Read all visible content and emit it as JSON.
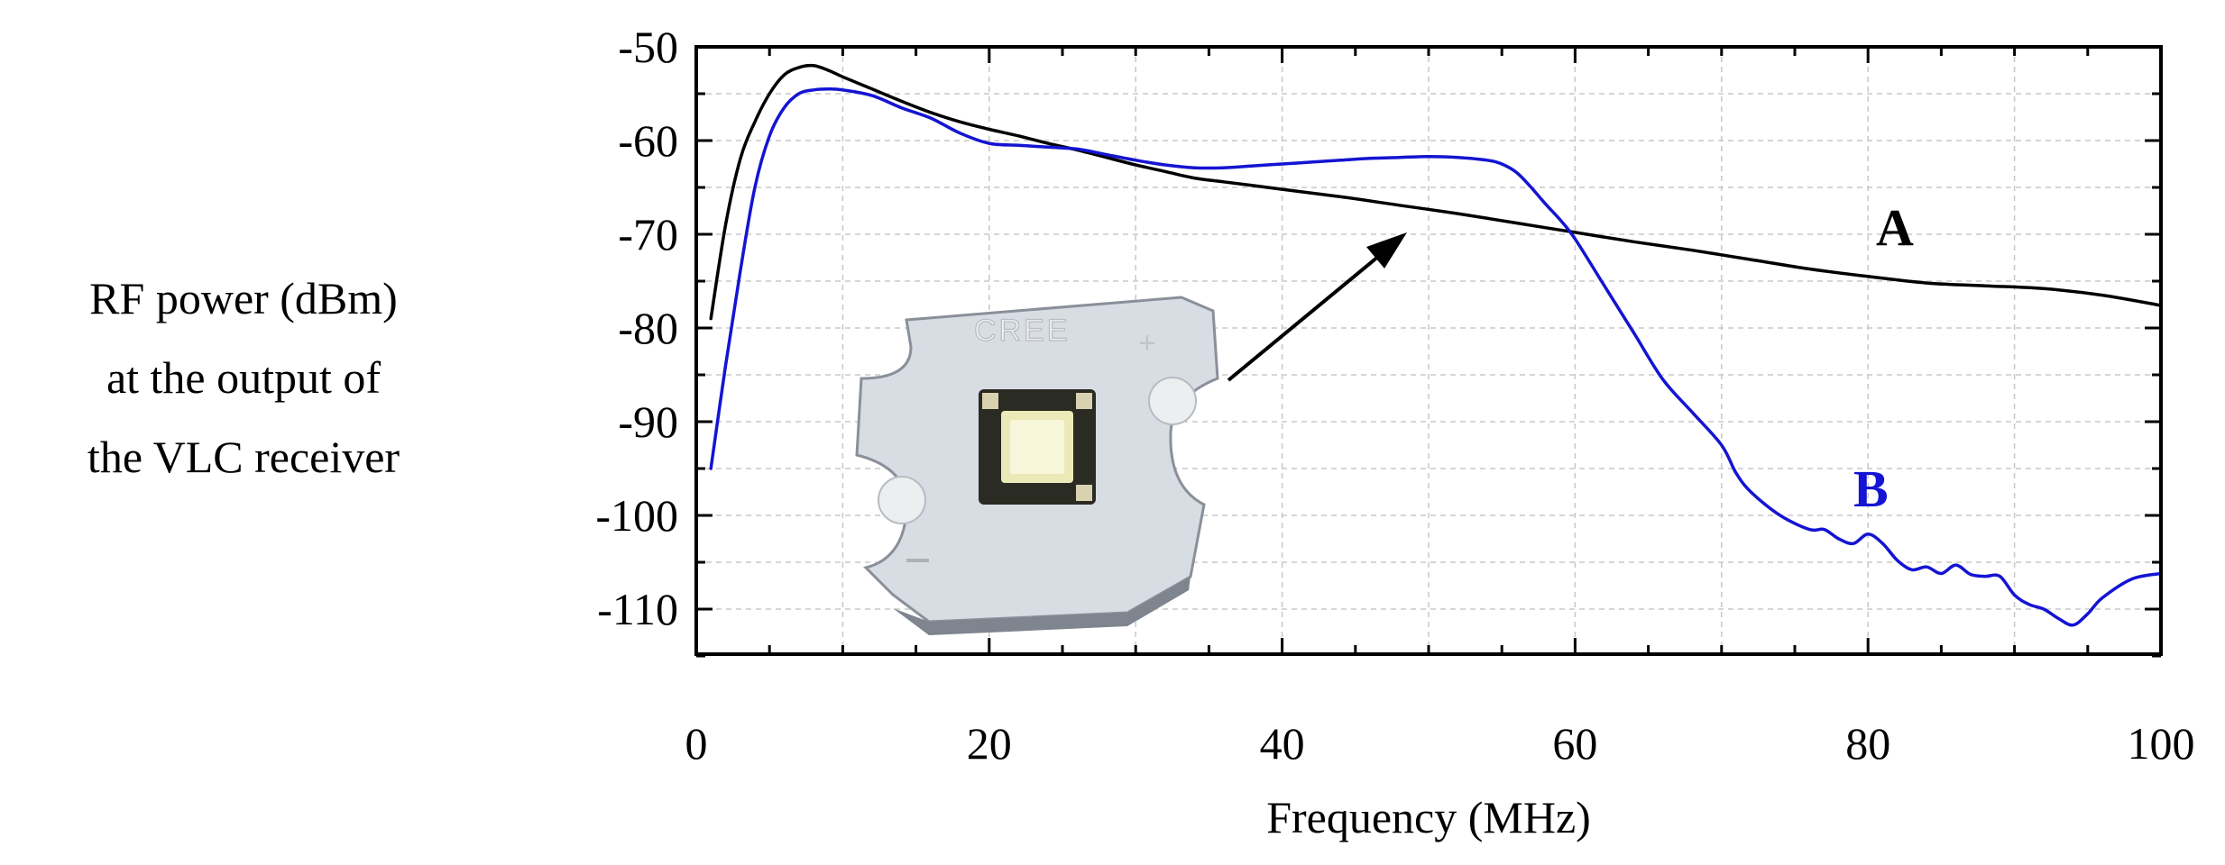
{
  "chart_data": {
    "type": "line",
    "title": "",
    "xlabel": "Frequency (MHz)",
    "ylabel_lines": [
      "RF power (dBm)",
      "at the output of",
      "the VLC receiver"
    ],
    "xlim": [
      0,
      100
    ],
    "ylim": [
      -115,
      -50
    ],
    "grid": true,
    "x_ticks": [
      0,
      20,
      40,
      60,
      80,
      100
    ],
    "y_ticks": [
      -50,
      -60,
      -70,
      -80,
      -90,
      -100,
      -110
    ],
    "x_tick_labels": [
      "0",
      "20",
      "40",
      "60",
      "80",
      "100"
    ],
    "y_tick_labels": [
      "-50",
      "-60",
      "-70",
      "-80",
      "-90",
      "-100",
      "-110"
    ],
    "series": [
      {
        "name": "A",
        "color": "#000000",
        "x": [
          1,
          2,
          3,
          4,
          5,
          6,
          7,
          8,
          9,
          10,
          12,
          14,
          16,
          18,
          20,
          22,
          24,
          26,
          28,
          30,
          32,
          34,
          36,
          38,
          40,
          44,
          48,
          52,
          56,
          60,
          64,
          68,
          72,
          76,
          80,
          84,
          88,
          92,
          96,
          100
        ],
        "y": [
          -79,
          -69,
          -62,
          -58,
          -55,
          -53,
          -52.2,
          -52,
          -52.5,
          -53.2,
          -54.5,
          -55.8,
          -57,
          -58,
          -58.8,
          -59.5,
          -60.3,
          -61,
          -61.8,
          -62.6,
          -63.3,
          -64,
          -64.4,
          -64.8,
          -65.2,
          -66,
          -66.9,
          -67.8,
          -68.8,
          -69.8,
          -70.8,
          -71.7,
          -72.7,
          -73.7,
          -74.5,
          -75.2,
          -75.5,
          -75.8,
          -76.5,
          -77.6
        ]
      },
      {
        "name": "B",
        "color": "#1414d2",
        "x": [
          1,
          2,
          3,
          4,
          5,
          6,
          7,
          8,
          9,
          10,
          12,
          14,
          16,
          18,
          20,
          22,
          24,
          26,
          28,
          30,
          32,
          34,
          36,
          38,
          40,
          42,
          44,
          46,
          48,
          50,
          52,
          54,
          55,
          56,
          57,
          58,
          59,
          60,
          62,
          64,
          66,
          68,
          70,
          71,
          72,
          74,
          76,
          77,
          78,
          79,
          80,
          81,
          82,
          83,
          84,
          85,
          86,
          87,
          88,
          89,
          90,
          91,
          92,
          93,
          94,
          95,
          96,
          98,
          100
        ],
        "y": [
          -95,
          -84,
          -74,
          -65,
          -59.5,
          -56.5,
          -55,
          -54.6,
          -54.5,
          -54.6,
          -55.2,
          -56.5,
          -57.6,
          -59.2,
          -60.3,
          -60.5,
          -60.7,
          -60.9,
          -61.5,
          -62.1,
          -62.6,
          -62.9,
          -62.9,
          -62.7,
          -62.5,
          -62.3,
          -62.1,
          -61.9,
          -61.8,
          -61.7,
          -61.8,
          -62.1,
          -62.5,
          -63.4,
          -65,
          -66.8,
          -68.5,
          -70.5,
          -75.5,
          -80.5,
          -85.5,
          -89,
          -92.5,
          -95.5,
          -97.5,
          -100,
          -101.5,
          -101.5,
          -102.5,
          -103,
          -102,
          -103,
          -104.8,
          -105.8,
          -105.5,
          -106.2,
          -105.3,
          -106.3,
          -106.5,
          -106.5,
          -108.5,
          -109.5,
          -110,
          -111,
          -111.7,
          -110.5,
          -108.8,
          -106.8,
          -106.2
        ]
      }
    ]
  },
  "series_labels": {
    "a": "A",
    "b": "B"
  },
  "inset": {
    "led_brand": "CREE"
  }
}
